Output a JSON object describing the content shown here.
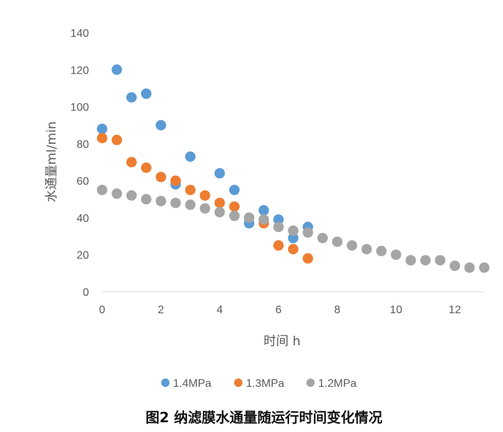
{
  "chart_data": {
    "type": "scatter",
    "title": "",
    "caption": "图2 纳滤膜水通量随运行时间变化情况",
    "xlabel": "时间 h",
    "ylabel": "水通量ml/min",
    "xlim": [
      0,
      13
    ],
    "ylim": [
      0,
      140
    ],
    "xticks": [
      0,
      2,
      4,
      6,
      8,
      10,
      12
    ],
    "yticks": [
      0,
      20,
      40,
      60,
      80,
      100,
      120,
      140
    ],
    "grid": false,
    "legend": "bottom",
    "series": [
      {
        "name": "1.4MPa",
        "color": "#5B9BD5",
        "x": [
          0,
          0.5,
          1,
          1.5,
          2,
          2.5,
          3,
          4,
          4.5,
          5,
          5.5,
          6,
          6.5,
          7
        ],
        "y": [
          88,
          120,
          105,
          107,
          90,
          58,
          73,
          64,
          55,
          37,
          44,
          39,
          29,
          35
        ]
      },
      {
        "name": "1.3MPa",
        "color": "#ED7D31",
        "x": [
          0,
          0.5,
          1,
          1.5,
          2,
          2.5,
          3,
          3.5,
          4,
          4.5,
          5.5,
          6,
          6.5,
          7
        ],
        "y": [
          83,
          82,
          70,
          67,
          62,
          60,
          55,
          52,
          48,
          46,
          37,
          25,
          23,
          18
        ]
      },
      {
        "name": "1.2MPa",
        "color": "#A5A5A5",
        "x": [
          0,
          0.5,
          1,
          1.5,
          2,
          2.5,
          3,
          3.5,
          4,
          4.5,
          5,
          5.5,
          6,
          6.5,
          7,
          7.5,
          8,
          8.5,
          9,
          9.5,
          10,
          10.5,
          11,
          11.5,
          12,
          12.5,
          13
        ],
        "y": [
          55,
          53,
          52,
          50,
          49,
          48,
          47,
          45,
          43,
          41,
          40,
          39,
          35,
          33,
          32,
          29,
          27,
          25,
          23,
          22,
          20,
          17,
          17,
          17,
          14,
          13,
          13
        ]
      }
    ]
  }
}
